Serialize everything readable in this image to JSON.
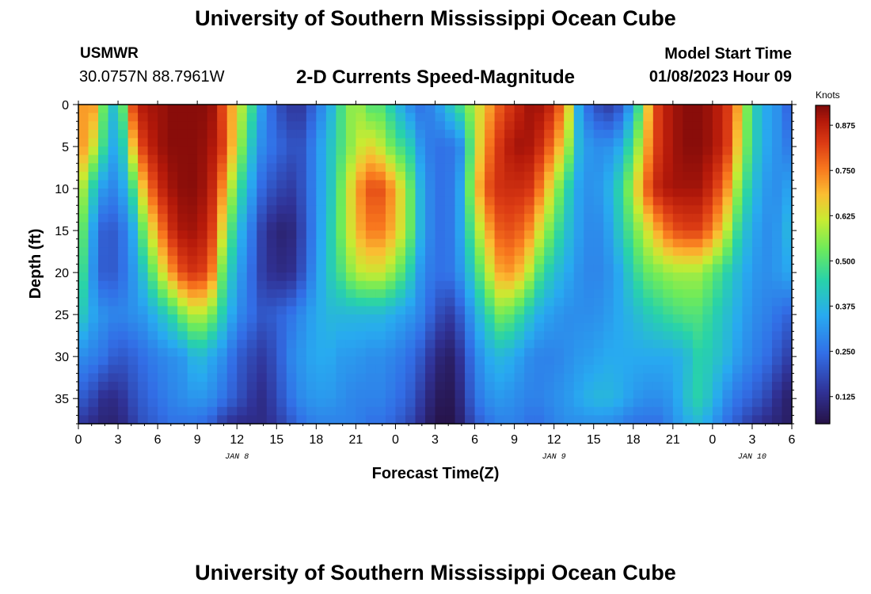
{
  "header": {
    "title": "University of Southern Mississippi Ocean Cube",
    "station": "USMWR",
    "location": "30.0757N  88.7961W",
    "subtitle": "2-D Currents Speed-Magnitude",
    "model_start_label": "Model Start Time",
    "model_start_value": "01/08/2023 Hour 09"
  },
  "footer": {
    "title": "University of Southern Mississippi Ocean Cube"
  },
  "chart_data": {
    "type": "heatmap",
    "xlabel": "Forecast Time(Z)",
    "ylabel": "Depth (ft)",
    "x_ticks": [
      "0",
      "3",
      "6",
      "9",
      "12",
      "15",
      "18",
      "21",
      "0",
      "3",
      "6",
      "9",
      "12",
      "15",
      "18",
      "21",
      "0",
      "3",
      "6"
    ],
    "x_range_hours": [
      0,
      54
    ],
    "date_labels": [
      {
        "label": "JAN 8",
        "hour": 12
      },
      {
        "label": "JAN 9",
        "hour": 36
      },
      {
        "label": "JAN 10",
        "hour": 51
      }
    ],
    "y_ticks": [
      0,
      5,
      10,
      15,
      20,
      25,
      30,
      35
    ],
    "ylim": [
      0,
      38
    ],
    "y_reversed": true,
    "colorbar": {
      "unit": "Knots",
      "ticks": [
        "0.875",
        "0.750",
        "0.625",
        "0.500",
        "0.375",
        "0.250",
        "0.125"
      ],
      "tick_values": [
        0.875,
        0.75,
        0.625,
        0.5,
        0.375,
        0.25,
        0.125
      ],
      "range": [
        0.05,
        0.93
      ]
    },
    "depth_samples_ft": [
      0,
      5,
      10,
      15,
      20,
      25,
      30,
      35,
      38
    ],
    "time_samples_hours": [
      0,
      1,
      2,
      3,
      4,
      5,
      6,
      7,
      8,
      9,
      10,
      11,
      12,
      13,
      14,
      15,
      16,
      17,
      18,
      19,
      20,
      21,
      22,
      23,
      24,
      25,
      26,
      27,
      28,
      29,
      30,
      31,
      32,
      33,
      34,
      35,
      36,
      37,
      38,
      39,
      40,
      41,
      42,
      43,
      44,
      45,
      46,
      47,
      48,
      49,
      50,
      51,
      52,
      53,
      54
    ],
    "speed_knots_by_depth": [
      [
        0.7,
        0.75,
        0.5,
        0.35,
        0.8,
        0.9,
        0.9,
        0.92,
        0.92,
        0.92,
        0.92,
        0.8,
        0.65,
        0.5,
        0.3,
        0.2,
        0.15,
        0.15,
        0.25,
        0.35,
        0.5,
        0.6,
        0.5,
        0.5,
        0.4,
        0.3,
        0.25,
        0.3,
        0.4,
        0.5,
        0.6,
        0.7,
        0.8,
        0.85,
        0.9,
        0.9,
        0.85,
        0.7,
        0.3,
        0.2,
        0.15,
        0.2,
        0.35,
        0.65,
        0.85,
        0.9,
        0.92,
        0.92,
        0.9,
        0.85,
        0.7,
        0.45,
        0.35,
        0.3,
        0.2
      ],
      [
        0.75,
        0.65,
        0.45,
        0.3,
        0.65,
        0.85,
        0.9,
        0.92,
        0.92,
        0.92,
        0.9,
        0.82,
        0.62,
        0.42,
        0.28,
        0.24,
        0.2,
        0.2,
        0.3,
        0.4,
        0.5,
        0.6,
        0.65,
        0.6,
        0.5,
        0.45,
        0.3,
        0.25,
        0.25,
        0.3,
        0.6,
        0.75,
        0.85,
        0.9,
        0.9,
        0.85,
        0.75,
        0.6,
        0.35,
        0.3,
        0.3,
        0.35,
        0.5,
        0.7,
        0.85,
        0.9,
        0.92,
        0.92,
        0.9,
        0.85,
        0.65,
        0.45,
        0.35,
        0.3,
        0.25
      ],
      [
        0.65,
        0.45,
        0.3,
        0.28,
        0.45,
        0.7,
        0.85,
        0.9,
        0.92,
        0.92,
        0.88,
        0.72,
        0.5,
        0.35,
        0.22,
        0.18,
        0.15,
        0.2,
        0.3,
        0.4,
        0.55,
        0.7,
        0.8,
        0.8,
        0.7,
        0.55,
        0.35,
        0.25,
        0.25,
        0.35,
        0.65,
        0.8,
        0.85,
        0.85,
        0.85,
        0.75,
        0.6,
        0.45,
        0.32,
        0.3,
        0.35,
        0.45,
        0.6,
        0.78,
        0.88,
        0.9,
        0.9,
        0.9,
        0.85,
        0.75,
        0.55,
        0.4,
        0.32,
        0.3,
        0.35
      ],
      [
        0.6,
        0.35,
        0.2,
        0.22,
        0.32,
        0.55,
        0.72,
        0.85,
        0.9,
        0.9,
        0.85,
        0.62,
        0.4,
        0.28,
        0.15,
        0.1,
        0.1,
        0.18,
        0.3,
        0.42,
        0.55,
        0.68,
        0.75,
        0.75,
        0.68,
        0.55,
        0.35,
        0.25,
        0.25,
        0.35,
        0.55,
        0.7,
        0.8,
        0.8,
        0.75,
        0.62,
        0.5,
        0.4,
        0.32,
        0.28,
        0.32,
        0.42,
        0.52,
        0.62,
        0.72,
        0.8,
        0.82,
        0.82,
        0.75,
        0.62,
        0.45,
        0.35,
        0.3,
        0.32,
        0.4
      ],
      [
        0.55,
        0.32,
        0.2,
        0.22,
        0.3,
        0.42,
        0.58,
        0.72,
        0.82,
        0.85,
        0.78,
        0.5,
        0.35,
        0.25,
        0.15,
        0.12,
        0.12,
        0.2,
        0.32,
        0.42,
        0.5,
        0.6,
        0.62,
        0.62,
        0.55,
        0.45,
        0.3,
        0.25,
        0.25,
        0.32,
        0.45,
        0.6,
        0.72,
        0.72,
        0.62,
        0.48,
        0.4,
        0.35,
        0.3,
        0.28,
        0.3,
        0.35,
        0.45,
        0.52,
        0.55,
        0.58,
        0.58,
        0.58,
        0.52,
        0.45,
        0.38,
        0.32,
        0.3,
        0.32,
        0.35
      ],
      [
        0.45,
        0.35,
        0.3,
        0.28,
        0.3,
        0.32,
        0.38,
        0.45,
        0.55,
        0.62,
        0.55,
        0.42,
        0.3,
        0.25,
        0.2,
        0.22,
        0.25,
        0.3,
        0.35,
        0.38,
        0.38,
        0.38,
        0.38,
        0.38,
        0.35,
        0.32,
        0.28,
        0.2,
        0.15,
        0.22,
        0.35,
        0.45,
        0.55,
        0.5,
        0.42,
        0.35,
        0.32,
        0.3,
        0.3,
        0.3,
        0.32,
        0.35,
        0.38,
        0.42,
        0.45,
        0.48,
        0.5,
        0.5,
        0.45,
        0.4,
        0.35,
        0.3,
        0.28,
        0.25,
        0.22
      ],
      [
        0.3,
        0.28,
        0.25,
        0.2,
        0.22,
        0.25,
        0.28,
        0.3,
        0.32,
        0.4,
        0.35,
        0.3,
        0.22,
        0.18,
        0.15,
        0.2,
        0.28,
        0.32,
        0.35,
        0.35,
        0.32,
        0.32,
        0.3,
        0.3,
        0.28,
        0.25,
        0.2,
        0.12,
        0.08,
        0.15,
        0.28,
        0.35,
        0.38,
        0.35,
        0.3,
        0.28,
        0.28,
        0.3,
        0.32,
        0.33,
        0.35,
        0.35,
        0.35,
        0.35,
        0.35,
        0.35,
        0.38,
        0.45,
        0.42,
        0.38,
        0.32,
        0.28,
        0.25,
        0.2,
        0.15
      ],
      [
        0.22,
        0.18,
        0.12,
        0.12,
        0.18,
        0.22,
        0.25,
        0.28,
        0.3,
        0.32,
        0.3,
        0.25,
        0.2,
        0.15,
        0.12,
        0.18,
        0.25,
        0.3,
        0.32,
        0.32,
        0.3,
        0.28,
        0.28,
        0.28,
        0.25,
        0.22,
        0.15,
        0.08,
        0.06,
        0.12,
        0.25,
        0.3,
        0.32,
        0.3,
        0.28,
        0.28,
        0.3,
        0.32,
        0.35,
        0.38,
        0.38,
        0.36,
        0.32,
        0.3,
        0.3,
        0.32,
        0.4,
        0.45,
        0.38,
        0.3,
        0.25,
        0.22,
        0.18,
        0.12,
        0.08
      ],
      [
        0.15,
        0.12,
        0.1,
        0.1,
        0.15,
        0.2,
        0.22,
        0.25,
        0.25,
        0.25,
        0.22,
        0.15,
        0.12,
        0.12,
        0.12,
        0.15,
        0.2,
        0.25,
        0.28,
        0.28,
        0.28,
        0.28,
        0.25,
        0.25,
        0.22,
        0.18,
        0.12,
        0.06,
        0.05,
        0.1,
        0.2,
        0.25,
        0.28,
        0.28,
        0.25,
        0.25,
        0.28,
        0.3,
        0.3,
        0.3,
        0.3,
        0.28,
        0.25,
        0.25,
        0.25,
        0.3,
        0.35,
        0.38,
        0.32,
        0.25,
        0.2,
        0.15,
        0.12,
        0.1,
        0.08
      ]
    ]
  }
}
